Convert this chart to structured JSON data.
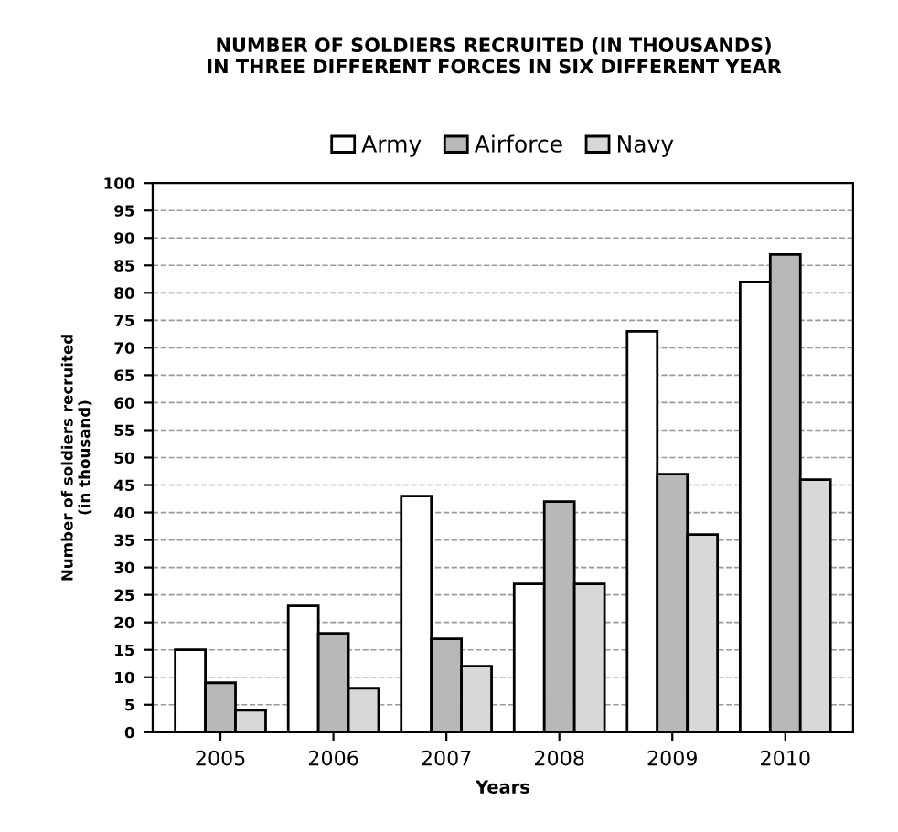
{
  "chart_data": {
    "type": "bar",
    "title": "NUMBER OF SOLDIERS RECRUITED (IN THOUSANDS)\nIN THREE DIFFERENT FORCES IN SIX DIFFERENT YEAR",
    "xlabel": "Years",
    "ylabel": "Number of soldiers recruited\n(in thousand)",
    "categories": [
      "2005",
      "2006",
      "2007",
      "2008",
      "2009",
      "2010"
    ],
    "series": [
      {
        "name": "Army",
        "color": "#ffffff",
        "values": [
          15,
          23,
          43,
          27,
          73,
          82
        ]
      },
      {
        "name": "Airforce",
        "color": "#b8b8b8",
        "values": [
          9,
          18,
          17,
          42,
          47,
          87
        ]
      },
      {
        "name": "Navy",
        "color": "#d8d8d8",
        "values": [
          4,
          8,
          12,
          27,
          36,
          46
        ]
      }
    ],
    "ylim": [
      0,
      100
    ],
    "yticks": [
      0,
      5,
      10,
      15,
      20,
      25,
      30,
      35,
      40,
      45,
      50,
      55,
      60,
      65,
      70,
      75,
      80,
      85,
      90,
      95,
      100
    ],
    "grid": "y",
    "legend": "top"
  }
}
